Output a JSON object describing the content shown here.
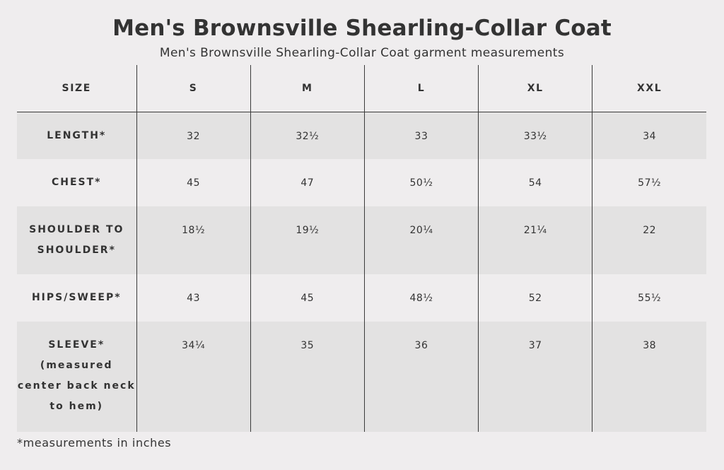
{
  "title": "Men's Brownsville Shearling-Collar Coat",
  "subtitle": "Men's Brownsville Shearling-Collar Coat garment measurements",
  "table": {
    "header": {
      "label": "SIZE",
      "sizes": [
        "S",
        "M",
        "L",
        "XL",
        "XXL"
      ]
    },
    "rows": [
      {
        "label_lines": [
          "LENGTH*"
        ],
        "values": [
          "32",
          "32½",
          "33",
          "33½",
          "34"
        ]
      },
      {
        "label_lines": [
          "CHEST*"
        ],
        "values": [
          "45",
          "47",
          "50½",
          "54",
          "57½"
        ]
      },
      {
        "label_lines": [
          "SHOULDER TO",
          "SHOULDER*"
        ],
        "values": [
          "18½",
          "19½",
          "20¼",
          "21¼",
          "22"
        ]
      },
      {
        "label_lines": [
          "HIPS/SWEEP*"
        ],
        "values": [
          "43",
          "45",
          "48½",
          "52",
          "55½"
        ]
      },
      {
        "label_lines": [
          "SLEEVE*",
          "(measured",
          "center back neck",
          "to hem)"
        ],
        "values": [
          "34¼",
          "35",
          "36",
          "37",
          "38"
        ]
      }
    ]
  },
  "footnote": "*measurements in inches",
  "colors": {
    "background": "#efedee",
    "shaded_row": "#e3e2e2",
    "text": "#333333",
    "rule": "#3a3a3a"
  }
}
